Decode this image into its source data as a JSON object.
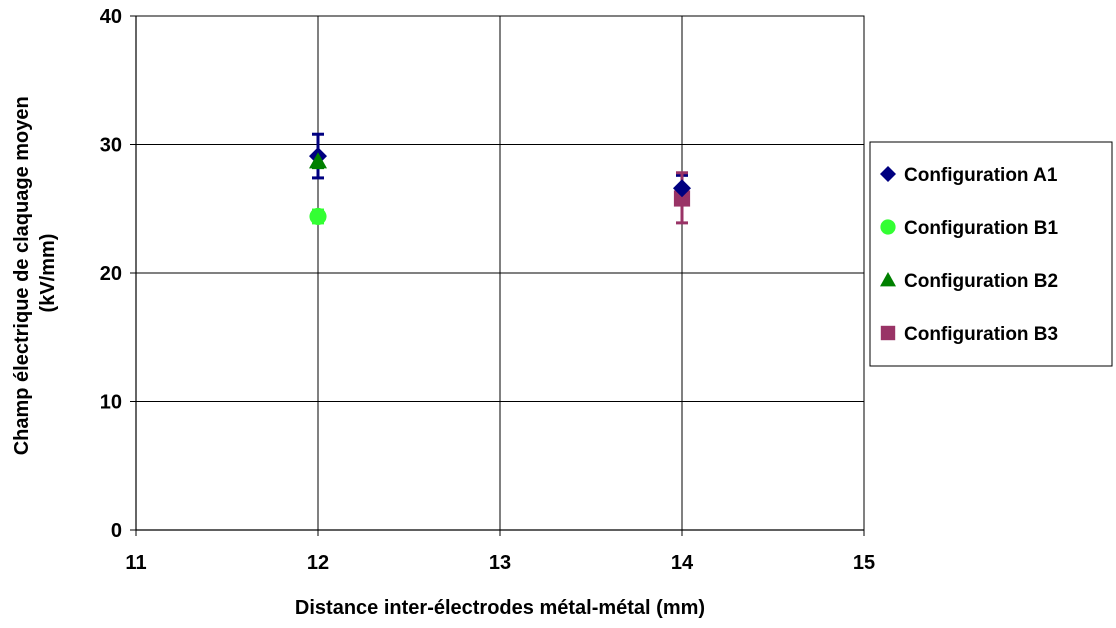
{
  "chart_data": {
    "type": "scatter",
    "title": "",
    "xlabel": "Distance inter-électrodes métal-métal (mm)",
    "ylabel_lines": [
      "Champ électrique de claquage moyen",
      "(kV/mm)"
    ],
    "xlim": [
      11,
      15
    ],
    "ylim": [
      0,
      40
    ],
    "x_ticks": [
      "11",
      "12",
      "13",
      "14",
      "15"
    ],
    "y_ticks": [
      "0",
      "10",
      "20",
      "30",
      "40"
    ],
    "grid": true,
    "legend_position": "right",
    "series": [
      {
        "name": "Configuration A1",
        "marker": "diamond",
        "color": "#000080",
        "points": [
          {
            "x": 12,
            "y": 29.1,
            "err_low": 27.4,
            "err_high": 30.8
          },
          {
            "x": 14,
            "y": 26.6,
            "err_low": 25.6,
            "err_high": 27.6
          }
        ]
      },
      {
        "name": "Configuration B1",
        "marker": "circle",
        "color": "#33FF33",
        "points": [
          {
            "x": 12,
            "y": 24.4,
            "err_low": 23.9,
            "err_high": 24.9
          }
        ]
      },
      {
        "name": "Configuration B2",
        "marker": "triangle",
        "color": "#008000",
        "points": [
          {
            "x": 12,
            "y": 28.7,
            "err_low": 28.2,
            "err_high": 29.2
          }
        ]
      },
      {
        "name": "Configuration B3",
        "marker": "square",
        "color": "#993366",
        "points": [
          {
            "x": 14,
            "y": 25.8,
            "err_low": 23.9,
            "err_high": 27.8
          }
        ]
      }
    ]
  }
}
